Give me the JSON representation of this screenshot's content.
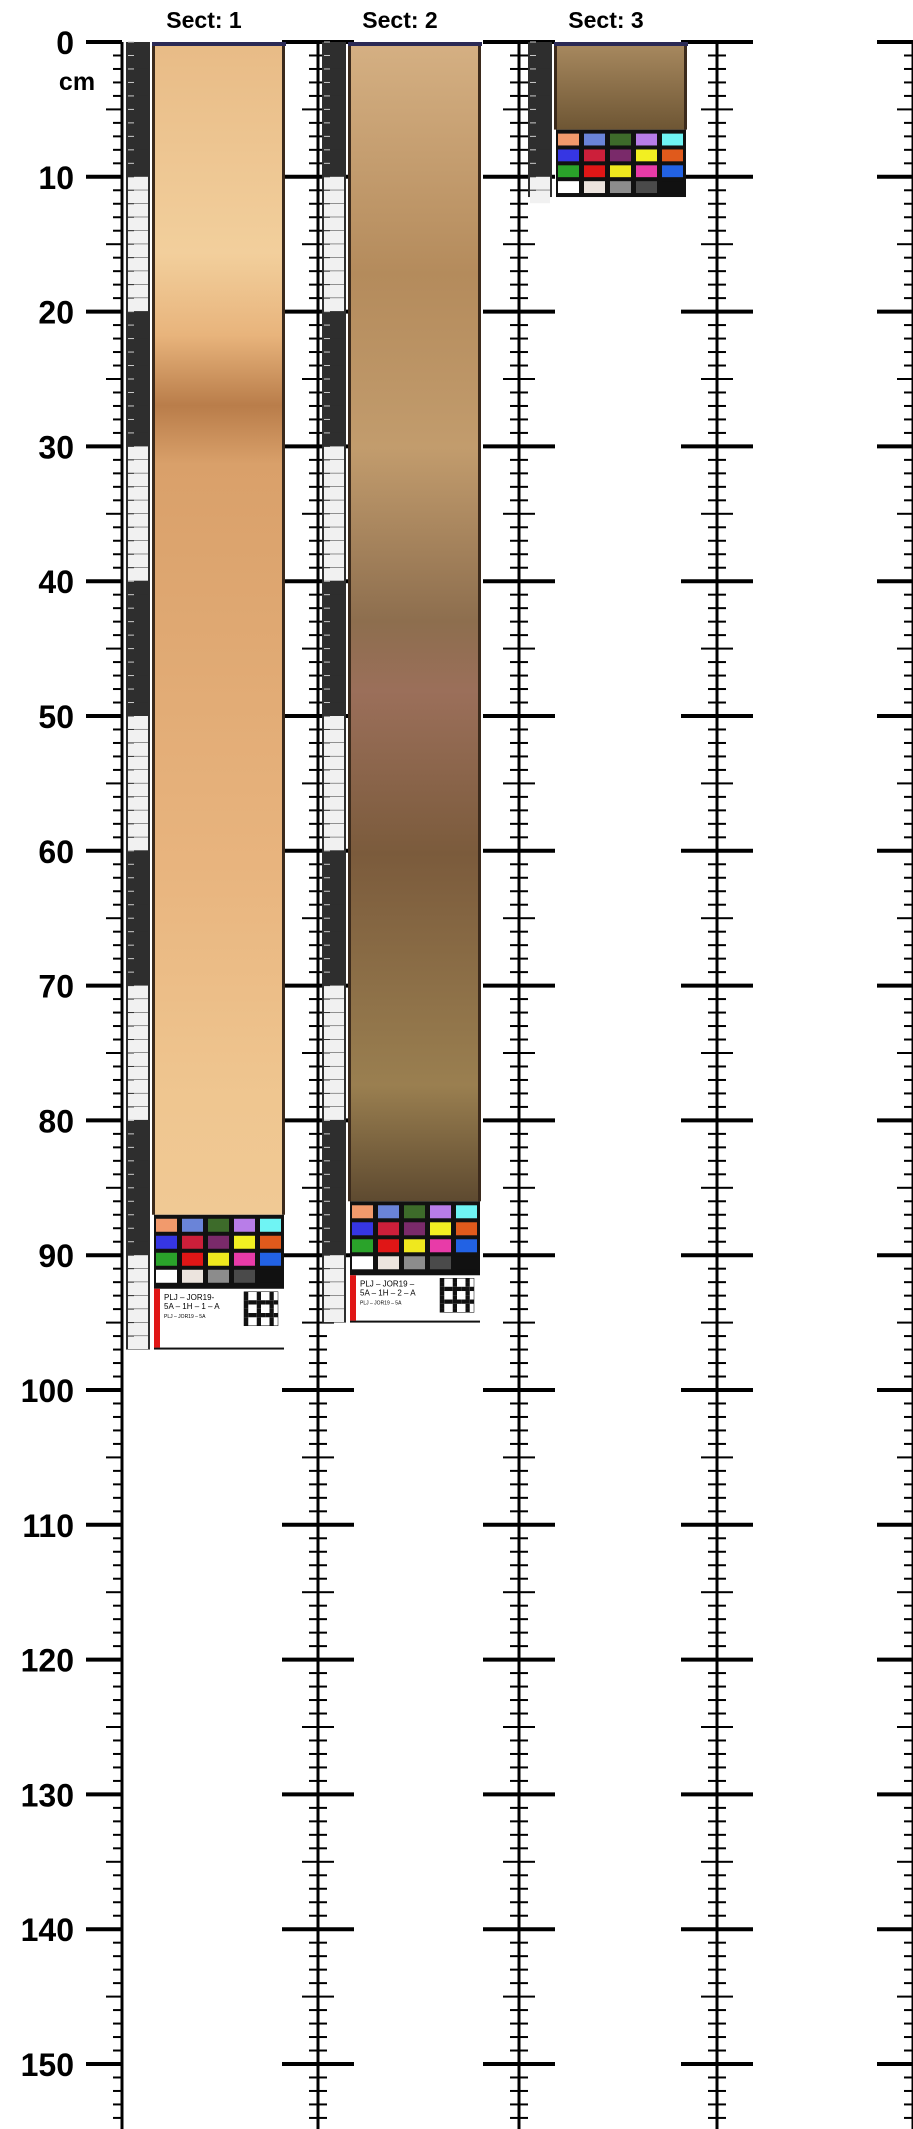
{
  "axis": {
    "unit": "cm",
    "ticks": [
      "0",
      "10",
      "20",
      "30",
      "40",
      "50",
      "60",
      "70",
      "80",
      "90",
      "100",
      "110",
      "120",
      "130",
      "140",
      "150"
    ]
  },
  "sections": [
    {
      "title": "Sect: 1",
      "core_length_cm": 87,
      "total_length_cm": 97,
      "label_lines": [
        "PLJ – JOR19-",
        "5A – 1H – 1 – A",
        "PLJ – JOR19 – 5A"
      ]
    },
    {
      "title": "Sect: 2",
      "core_length_cm": 86,
      "total_length_cm": 95,
      "label_lines": [
        "PLJ – JOR19 –",
        "5A – 1H – 2 – A",
        "PLJ – JOR19 – 5A"
      ]
    },
    {
      "title": "Sect: 3",
      "core_length_cm": 6.5,
      "total_length_cm": 11.5,
      "label_lines": []
    }
  ],
  "colors": {
    "sect1_top": "#e5b47d",
    "sect1_band": "#b57a48",
    "sect1_bottom": "#efc690",
    "sect2_top": "#c9a273",
    "sect2_mid": "#8c6b46",
    "sect2_bottom": "#6a5232",
    "sect3": "#9c7d55",
    "ruler_dark": "#2e2e2e",
    "ruler_light": "#f1f1f1"
  },
  "color_card_swatches": [
    [
      "#f29a6c",
      "#6a84d8",
      "#3d6b2a",
      "#b87de8",
      "#6ff4f4"
    ],
    [
      "#3636e3",
      "#cc1f3a",
      "#7a2a6a",
      "#f2ef22",
      "#e05a1c"
    ],
    [
      "#2aa32a",
      "#e01616",
      "#efe81e",
      "#e83ba8",
      "#2262e4"
    ],
    [
      "#ffffff",
      "#ece4de",
      "#8c8c8c",
      "#4a4a4a",
      "#111111"
    ]
  ]
}
